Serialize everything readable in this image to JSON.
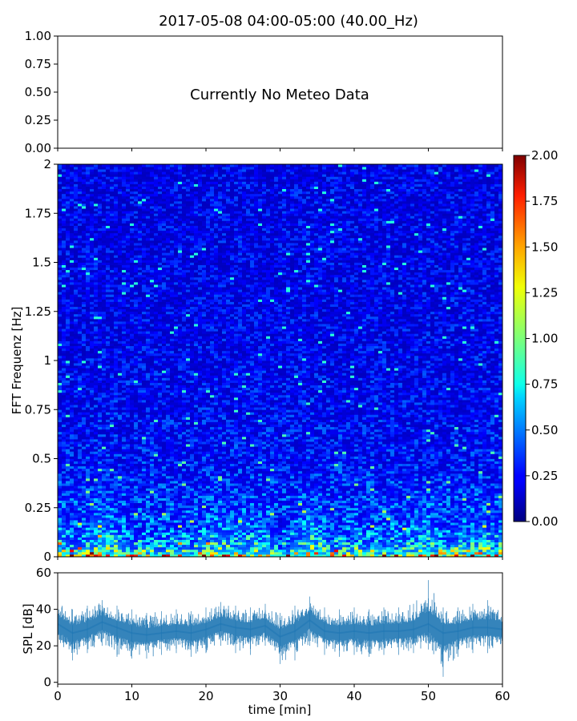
{
  "title": "2017-05-08 04:00-05:00 (40.00_Hz)",
  "chart_data": [
    {
      "type": "line",
      "panel": "meteo",
      "message": "Currently No Meteo Data",
      "ylim": [
        0,
        1
      ],
      "yticks": [
        "0.00",
        "0.25",
        "0.50",
        "0.75",
        "1.00"
      ],
      "series": []
    },
    {
      "type": "heatmap",
      "panel": "spectrogram",
      "ylabel": "FFT Frequenz [Hz]",
      "xlim": [
        0,
        60
      ],
      "ylim": [
        0,
        2
      ],
      "yticks": [
        "0",
        "0.25",
        "0.5",
        "0.75",
        "1",
        "1.25",
        "1.5",
        "1.75",
        "2"
      ],
      "colormap": "jet",
      "colorbar": {
        "range": [
          0,
          2
        ],
        "ticks": [
          "0.00",
          "0.25",
          "0.50",
          "0.75",
          "1.00",
          "1.25",
          "1.50",
          "1.75",
          "2.00"
        ]
      },
      "profile_by_frequency": {
        "frequency_hz": [
          0.0,
          0.02,
          0.05,
          0.1,
          0.15,
          0.25,
          0.5,
          0.75,
          1.0,
          1.5,
          2.0
        ],
        "typical_value": [
          1.6,
          1.0,
          0.75,
          0.6,
          0.5,
          0.42,
          0.33,
          0.3,
          0.28,
          0.27,
          0.27
        ]
      }
    },
    {
      "type": "area",
      "panel": "spl",
      "ylabel": "SPL [dB]",
      "xlabel": "time [min]",
      "xlim": [
        0,
        60
      ],
      "ylim": [
        -1,
        60
      ],
      "xticks": [
        "0",
        "10",
        "20",
        "30",
        "40",
        "50",
        "60"
      ],
      "yticks": [
        "0",
        "20",
        "40",
        "60"
      ],
      "color": "#1f77b4",
      "series": [
        {
          "x": [
            0,
            2,
            4,
            6,
            8,
            10,
            12,
            14,
            16,
            18,
            20,
            22,
            24,
            26,
            28,
            30,
            32,
            34,
            36,
            38,
            40,
            42,
            44,
            46,
            48,
            50,
            52,
            54,
            56,
            58,
            60
          ],
          "mean": [
            32,
            27,
            29,
            33,
            30,
            27,
            26,
            27,
            28,
            27,
            29,
            32,
            30,
            29,
            31,
            25,
            28,
            34,
            28,
            27,
            28,
            27,
            28,
            28,
            29,
            32,
            27,
            28,
            30,
            30,
            29
          ],
          "min": [
            18,
            12,
            16,
            20,
            14,
            13,
            13,
            15,
            16,
            14,
            16,
            20,
            16,
            15,
            20,
            10,
            12,
            20,
            15,
            14,
            15,
            14,
            15,
            15,
            16,
            18,
            3,
            14,
            16,
            16,
            16
          ],
          "max": [
            46,
            40,
            42,
            45,
            42,
            40,
            38,
            39,
            40,
            39,
            41,
            44,
            42,
            41,
            43,
            38,
            42,
            47,
            41,
            40,
            41,
            40,
            41,
            41,
            43,
            56,
            41,
            41,
            43,
            45,
            42
          ]
        }
      ]
    }
  ]
}
